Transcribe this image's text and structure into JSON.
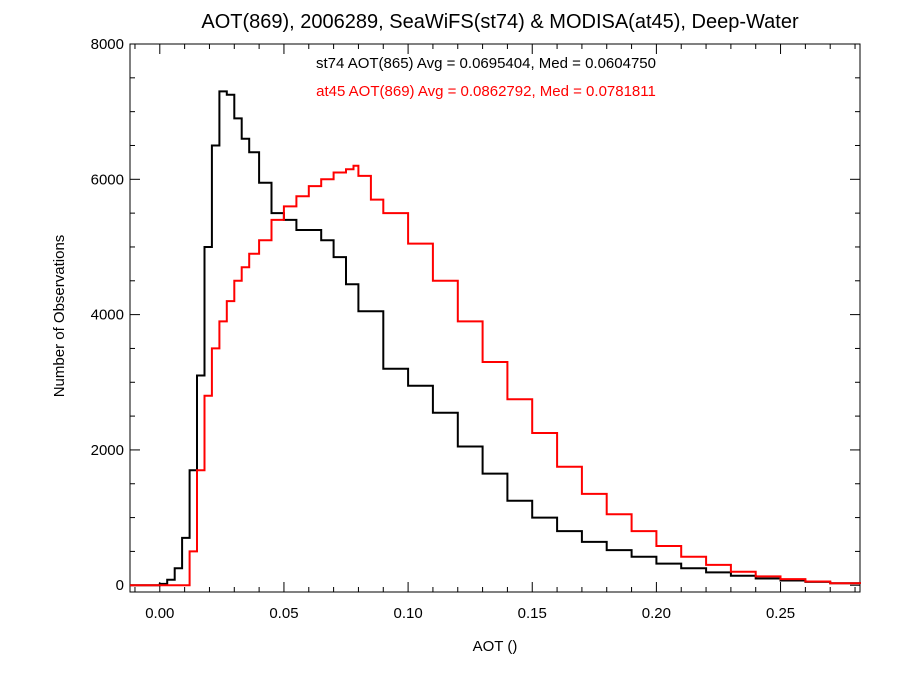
{
  "chart_data": {
    "type": "line",
    "title": "AOT(869), 2006289, SeaWiFS(st74) & MODISA(at45), Deep-Water",
    "xlabel": "AOT ()",
    "ylabel": "Number of Observations",
    "xlim": [
      -0.012,
      0.282
    ],
    "ylim": [
      -100,
      8000
    ],
    "xticks": [
      0.0,
      0.05,
      0.1,
      0.15,
      0.2,
      0.25
    ],
    "xtick_labels": [
      "0.00",
      "0.05",
      "0.10",
      "0.15",
      "0.20",
      "0.25"
    ],
    "yticks": [
      0,
      2000,
      4000,
      6000,
      8000
    ],
    "ytick_labels": [
      "0",
      "2000",
      "4000",
      "6000",
      "8000"
    ],
    "grid": false,
    "annotations": [
      {
        "text": "st74 AOT(865) Avg = 0.0695404, Med = 0.0604750",
        "color": "#000000"
      },
      {
        "text": "at45 AOT(869) Avg = 0.0862792, Med = 0.0781811",
        "color": "#ff0000"
      }
    ],
    "series": [
      {
        "color": "#000000",
        "style": "histogram-step",
        "x": [
          -0.012,
          0.0,
          0.003,
          0.006,
          0.009,
          0.012,
          0.015,
          0.018,
          0.021,
          0.024,
          0.027,
          0.03,
          0.033,
          0.036,
          0.04,
          0.045,
          0.05,
          0.055,
          0.06,
          0.065,
          0.07,
          0.075,
          0.08,
          0.09,
          0.1,
          0.11,
          0.12,
          0.13,
          0.14,
          0.15,
          0.16,
          0.17,
          0.18,
          0.19,
          0.2,
          0.21,
          0.22,
          0.23,
          0.24,
          0.25,
          0.26,
          0.27,
          0.282
        ],
        "y": [
          0,
          20,
          80,
          250,
          700,
          1700,
          3100,
          5000,
          6500,
          7300,
          7250,
          6900,
          6600,
          6400,
          5950,
          5500,
          5400,
          5250,
          5250,
          5100,
          4850,
          4450,
          4050,
          3200,
          2950,
          2550,
          2050,
          1650,
          1250,
          1000,
          800,
          640,
          520,
          420,
          320,
          250,
          190,
          140,
          100,
          70,
          50,
          30,
          20
        ]
      },
      {
        "color": "#ff0000",
        "style": "histogram-step",
        "x": [
          -0.012,
          0.009,
          0.012,
          0.015,
          0.018,
          0.021,
          0.024,
          0.027,
          0.03,
          0.033,
          0.036,
          0.04,
          0.045,
          0.05,
          0.055,
          0.06,
          0.065,
          0.07,
          0.075,
          0.078,
          0.08,
          0.085,
          0.09,
          0.1,
          0.11,
          0.12,
          0.13,
          0.14,
          0.15,
          0.16,
          0.17,
          0.18,
          0.19,
          0.2,
          0.21,
          0.22,
          0.23,
          0.24,
          0.25,
          0.26,
          0.27,
          0.282
        ],
        "y": [
          0,
          0,
          500,
          1700,
          2800,
          3500,
          3900,
          4200,
          4500,
          4700,
          4900,
          5100,
          5400,
          5600,
          5750,
          5900,
          6000,
          6100,
          6150,
          6200,
          6050,
          5700,
          5500,
          5050,
          4500,
          3900,
          3300,
          2750,
          2250,
          1750,
          1350,
          1050,
          800,
          580,
          420,
          300,
          200,
          130,
          90,
          55,
          30,
          20
        ]
      }
    ]
  }
}
